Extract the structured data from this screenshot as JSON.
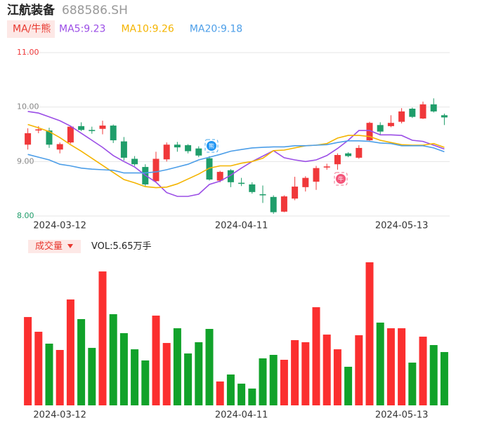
{
  "chart_data": [
    {
      "type": "candlestick",
      "title": "江航装备",
      "subtitle": "688586.SH",
      "legend_title": "MA/牛熊",
      "categories": [
        null,
        null,
        null,
        "2024-03-12",
        null,
        null,
        null,
        null,
        null,
        null,
        null,
        null,
        null,
        null,
        null,
        null,
        null,
        null,
        null,
        null,
        "2024-04-11",
        null,
        null,
        null,
        null,
        null,
        null,
        null,
        null,
        null,
        null,
        null,
        null,
        null,
        null,
        "2024-05-13",
        null,
        null,
        null,
        null
      ],
      "open": [
        9.31,
        9.57,
        9.57,
        9.22,
        9.35,
        9.65,
        9.58,
        9.6,
        9.66,
        9.37,
        9.05,
        8.9,
        8.64,
        9.04,
        9.31,
        9.3,
        9.24,
        9.06,
        8.65,
        8.84,
        8.61,
        8.58,
        8.4,
        8.35,
        8.08,
        8.32,
        8.53,
        8.63,
        8.89,
        8.95,
        9.15,
        9.07,
        9.39,
        9.67,
        9.65,
        9.73,
        9.97,
        9.79,
        10.05,
        9.85
      ],
      "high": [
        9.61,
        9.65,
        9.62,
        9.35,
        9.66,
        9.72,
        9.64,
        9.75,
        9.68,
        9.45,
        9.1,
        8.95,
        9.18,
        9.35,
        9.36,
        9.32,
        9.28,
        9.1,
        8.83,
        8.86,
        8.7,
        8.62,
        8.56,
        8.38,
        8.38,
        8.72,
        8.73,
        8.92,
        8.96,
        9.15,
        9.17,
        9.3,
        9.73,
        9.72,
        9.85,
        9.98,
        9.99,
        10.1,
        10.16,
        9.88
      ],
      "low": [
        9.22,
        9.52,
        9.25,
        9.15,
        9.33,
        9.56,
        9.51,
        9.5,
        9.34,
        9.02,
        8.92,
        8.55,
        8.62,
        9.0,
        9.18,
        9.15,
        9.08,
        8.65,
        8.62,
        8.53,
        8.55,
        8.41,
        8.24,
        8.04,
        8.07,
        8.29,
        8.45,
        8.48,
        8.85,
        8.85,
        9.08,
        9.05,
        9.38,
        9.5,
        9.63,
        9.7,
        9.8,
        9.78,
        9.9,
        9.67
      ],
      "close": [
        9.52,
        9.59,
        9.31,
        9.32,
        9.64,
        9.58,
        9.56,
        9.66,
        9.39,
        9.07,
        8.95,
        8.58,
        9.05,
        9.31,
        9.26,
        9.19,
        9.11,
        8.67,
        8.81,
        8.62,
        8.59,
        8.44,
        8.38,
        8.07,
        8.36,
        8.54,
        8.7,
        8.88,
        8.91,
        9.12,
        9.1,
        9.25,
        9.71,
        9.55,
        9.71,
        9.92,
        9.82,
        10.05,
        9.92,
        9.81
      ],
      "up_color": "#f0383a",
      "down_color": "#1f9d6a",
      "ylim": [
        8,
        11
      ],
      "yticks": [
        {
          "value": 11,
          "label": "11.00"
        },
        {
          "value": 10,
          "label": "10.00"
        },
        {
          "value": 9,
          "label": "9.00"
        },
        {
          "value": 8,
          "label": "8.00"
        }
      ],
      "grid": true,
      "series": [
        {
          "name": "MA5:9.23",
          "color": "#9b4ee6",
          "values": [
            9.92,
            9.89,
            9.82,
            9.75,
            9.65,
            9.52,
            9.39,
            9.26,
            9.11,
            9.0,
            8.9,
            8.75,
            8.62,
            8.43,
            8.36,
            8.36,
            8.4,
            8.58,
            8.64,
            8.75,
            8.88,
            9.0,
            9.1,
            9.2,
            9.07,
            9.03,
            9.0,
            9.03,
            9.11,
            9.24,
            9.39,
            9.57,
            9.57,
            9.49,
            9.49,
            9.48,
            9.39,
            9.37,
            9.3,
            9.23
          ]
        },
        {
          "name": "MA10:9.26",
          "color": "#f4b400",
          "values": [
            9.68,
            9.62,
            9.55,
            9.44,
            9.31,
            9.19,
            9.06,
            8.93,
            8.8,
            8.67,
            8.61,
            8.54,
            8.52,
            8.53,
            8.59,
            8.68,
            8.77,
            8.88,
            8.92,
            8.92,
            8.97,
            9.0,
            9.06,
            9.2,
            9.21,
            9.25,
            9.29,
            9.3,
            9.33,
            9.43,
            9.48,
            9.48,
            9.46,
            9.39,
            9.35,
            9.31,
            9.3,
            9.3,
            9.33,
            9.26
          ]
        },
        {
          "name": "MA20:9.18",
          "color": "#4c9ee8",
          "values": [
            9.13,
            9.08,
            9.03,
            8.95,
            8.92,
            8.88,
            8.86,
            8.85,
            8.84,
            8.79,
            8.79,
            8.79,
            8.81,
            8.85,
            8.9,
            8.95,
            9.03,
            9.08,
            9.13,
            9.19,
            9.22,
            9.25,
            9.26,
            9.27,
            9.27,
            9.29,
            9.29,
            9.3,
            9.31,
            9.35,
            9.38,
            9.38,
            9.37,
            9.34,
            9.33,
            9.29,
            9.29,
            9.29,
            9.25,
            9.18
          ]
        }
      ],
      "annotations": [
        {
          "label": "熊"
        },
        {
          "label": "牛"
        }
      ]
    },
    {
      "type": "bar",
      "title": "成交量",
      "subtitle": "VOL:5.65万手",
      "categories": [
        null,
        null,
        null,
        "2024-03-12",
        null,
        null,
        null,
        null,
        null,
        null,
        null,
        null,
        null,
        null,
        null,
        null,
        null,
        null,
        null,
        null,
        "2024-04-11",
        null,
        null,
        null,
        null,
        null,
        null,
        null,
        null,
        null,
        null,
        null,
        null,
        null,
        null,
        "2024-05-13",
        null,
        null,
        null,
        null
      ],
      "values": [
        9.36,
        7.8,
        6.54,
        5.87,
        11.22,
        9.14,
        6.09,
        14.19,
        9.66,
        7.65,
        5.94,
        4.76,
        9.51,
        6.61,
        8.17,
        5.5,
        6.69,
        8.1,
        2.53,
        3.27,
        2.3,
        1.78,
        4.98,
        5.35,
        4.83,
        6.91,
        6.69,
        10.4,
        7.5,
        5.94,
        4.09,
        7.43,
        15.16,
        8.77,
        8.17,
        8.17,
        4.53,
        7.28,
        6.39,
        5.65
      ],
      "up_color": "#fb2f2f",
      "down_color": "#11a22a"
    }
  ]
}
